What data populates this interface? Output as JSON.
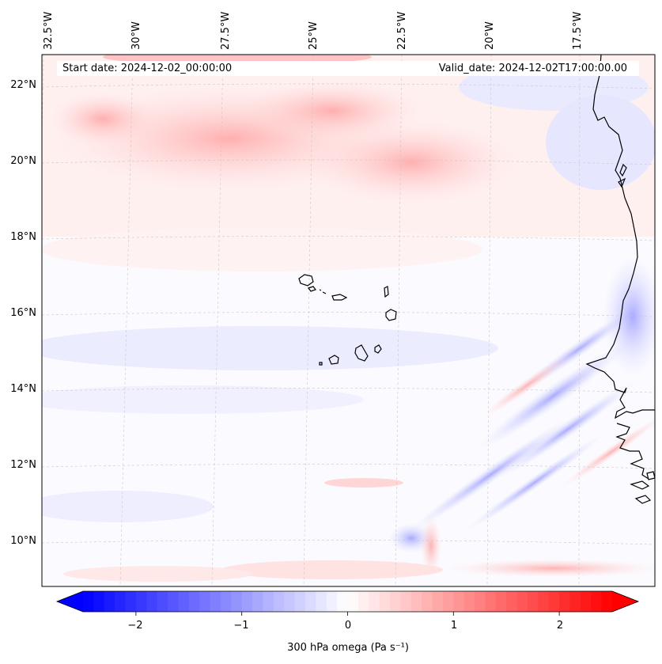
{
  "map": {
    "start_date_label": "Start date: 2024-12-02_00:00:00",
    "valid_date_label": "Valid_date: 2024-12-02T17:00:00.00",
    "longitude_labels": [
      "32.5°W",
      "30°W",
      "27.5°W",
      "25°W",
      "22.5°W",
      "20°W",
      "17.5°W"
    ],
    "latitude_labels": [
      "22°N",
      "20°N",
      "18°N",
      "16°N",
      "14°N",
      "12°N",
      "10°N"
    ],
    "extent": {
      "lon_min": -32.6,
      "lon_max": -15.4,
      "lat_min": 8.9,
      "lat_max": 22.8
    }
  },
  "colorbar": {
    "ticks": [
      "−2",
      "−1",
      "0",
      "1",
      "2"
    ],
    "tick_values": [
      -2,
      -1,
      0,
      1,
      2
    ],
    "vmin": -2.5,
    "vmax": 2.5,
    "label": "300 hPa omega (Pa s⁻¹)",
    "low_color": "#0000ff",
    "high_color": "#ff0000",
    "mid_color": "#ffffff"
  }
}
